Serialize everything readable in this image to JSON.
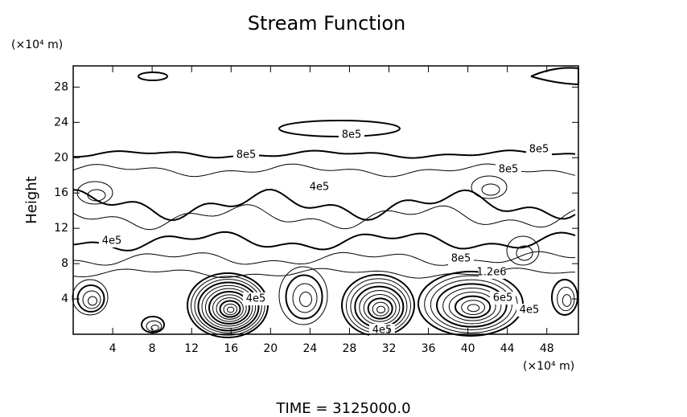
{
  "chart_data": {
    "type": "contour",
    "title": "Stream Function",
    "ylabel": "Height",
    "y_unit": "(×10⁴ m)",
    "x_unit": "(×10⁴ m)",
    "footer": "TIME  =  3125000.0",
    "xlim": [
      0,
      51.2
    ],
    "ylim": [
      0,
      30.4
    ],
    "xticks": [
      4,
      8,
      12,
      16,
      20,
      24,
      28,
      32,
      36,
      40,
      44,
      48
    ],
    "yticks": [
      4,
      8,
      12,
      16,
      20,
      24,
      28
    ],
    "contour_labels": [
      "8e5",
      "8e5",
      "8e5",
      "8e5",
      "4e5",
      "4e5",
      "8e5",
      "1.2e6",
      "6e5",
      "4e5",
      "4e5",
      "4e5"
    ]
  }
}
